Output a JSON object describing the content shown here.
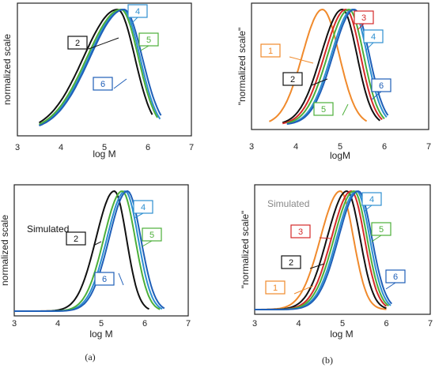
{
  "charts": [
    {
      "id": "a-top",
      "type": "line",
      "xlabel": "log M",
      "ylabel": "normalized scale",
      "xlim": [
        3,
        7
      ],
      "xticks": [
        "3",
        "4",
        "5",
        "6",
        "7"
      ],
      "annotation": "",
      "series": [
        {
          "label": "2",
          "color": "#111111",
          "peak": 5.3,
          "sl": 0.78,
          "sr": 0.4,
          "from": 3.5,
          "to": 6.1
        },
        {
          "label": "4",
          "color": "#2e8fd0",
          "peak": 5.42,
          "sl": 0.78,
          "sr": 0.4,
          "from": 3.5,
          "to": 6.28
        },
        {
          "label": "5",
          "color": "#4caf3a",
          "peak": 5.38,
          "sl": 0.78,
          "sr": 0.4,
          "from": 3.5,
          "to": 6.22
        },
        {
          "label": "6",
          "color": "#1f5fb8",
          "peak": 5.45,
          "sl": 0.78,
          "sr": 0.42,
          "from": 3.5,
          "to": 6.3
        }
      ]
    },
    {
      "id": "b-top",
      "type": "line",
      "xlabel": "logM",
      "ylabel": "\"normalized scale\"",
      "xlim": [
        3,
        7
      ],
      "xticks": [
        "3",
        "4",
        "5",
        "6",
        "7"
      ],
      "annotation": "",
      "series": [
        {
          "label": "1",
          "color": "#f08a2c",
          "peak": 4.6,
          "sl": 0.45,
          "sr": 0.38,
          "from": 3.4,
          "to": 5.6
        },
        {
          "label": "2",
          "color": "#111111",
          "peak": 5.05,
          "sl": 0.48,
          "sr": 0.33,
          "from": 3.7,
          "to": 5.9
        },
        {
          "label": "3",
          "color": "#d42a2a",
          "peak": 5.13,
          "sl": 0.48,
          "sr": 0.33,
          "from": 3.7,
          "to": 5.95
        },
        {
          "label": "4",
          "color": "#2e8fd0",
          "peak": 5.28,
          "sl": 0.48,
          "sr": 0.33,
          "from": 3.8,
          "to": 6.05
        },
        {
          "label": "5",
          "color": "#4caf3a",
          "peak": 5.2,
          "sl": 0.48,
          "sr": 0.33,
          "from": 3.8,
          "to": 6.0
        },
        {
          "label": "6",
          "color": "#1f5fb8",
          "peak": 5.32,
          "sl": 0.48,
          "sr": 0.34,
          "from": 3.8,
          "to": 6.08
        }
      ]
    },
    {
      "id": "a-bottom",
      "type": "line",
      "xlabel": "log M",
      "ylabel": "normalized scale",
      "xlim": [
        3,
        7
      ],
      "xticks": [
        "3",
        "4",
        "5",
        "6",
        "7"
      ],
      "annotation": "Simulated",
      "series": [
        {
          "label": "2",
          "color": "#111111",
          "peak": 5.3,
          "sl": 0.42,
          "sr": 0.28,
          "from": 3.0,
          "to": 6.1
        },
        {
          "label": "4",
          "color": "#2e8fd0",
          "peak": 5.55,
          "sl": 0.42,
          "sr": 0.3,
          "from": 3.0,
          "to": 6.4
        },
        {
          "label": "5",
          "color": "#4caf3a",
          "peak": 5.48,
          "sl": 0.42,
          "sr": 0.3,
          "from": 3.0,
          "to": 6.35
        },
        {
          "label": "6",
          "color": "#1f5fb8",
          "peak": 5.6,
          "sl": 0.42,
          "sr": 0.31,
          "from": 3.0,
          "to": 6.45
        }
      ]
    },
    {
      "id": "b-bottom",
      "type": "line",
      "xlabel": "log M",
      "ylabel": "\"normalized scale\"",
      "xlim": [
        3,
        7
      ],
      "xticks": [
        "3",
        "4",
        "5",
        "6",
        "7"
      ],
      "annotation": "Simulated",
      "series": [
        {
          "label": "1",
          "color": "#f08a2c",
          "peak": 4.95,
          "sl": 0.45,
          "sr": 0.3,
          "from": 3.0,
          "to": 6.0
        },
        {
          "label": "2",
          "color": "#111111",
          "peak": 5.1,
          "sl": 0.45,
          "sr": 0.3,
          "from": 3.0,
          "to": 6.0
        },
        {
          "label": "3",
          "color": "#d42a2a",
          "peak": 5.2,
          "sl": 0.45,
          "sr": 0.3,
          "from": 3.0,
          "to": 6.0
        },
        {
          "label": "4",
          "color": "#2e8fd0",
          "peak": 5.32,
          "sl": 0.45,
          "sr": 0.3,
          "from": 3.0,
          "to": 6.1
        },
        {
          "label": "5",
          "color": "#4caf3a",
          "peak": 5.26,
          "sl": 0.45,
          "sr": 0.3,
          "from": 3.0,
          "to": 6.05
        },
        {
          "label": "6",
          "color": "#1f5fb8",
          "peak": 5.36,
          "sl": 0.45,
          "sr": 0.31,
          "from": 3.0,
          "to": 6.12
        }
      ]
    }
  ],
  "captions": {
    "a": "(a)",
    "b": "(b)"
  }
}
